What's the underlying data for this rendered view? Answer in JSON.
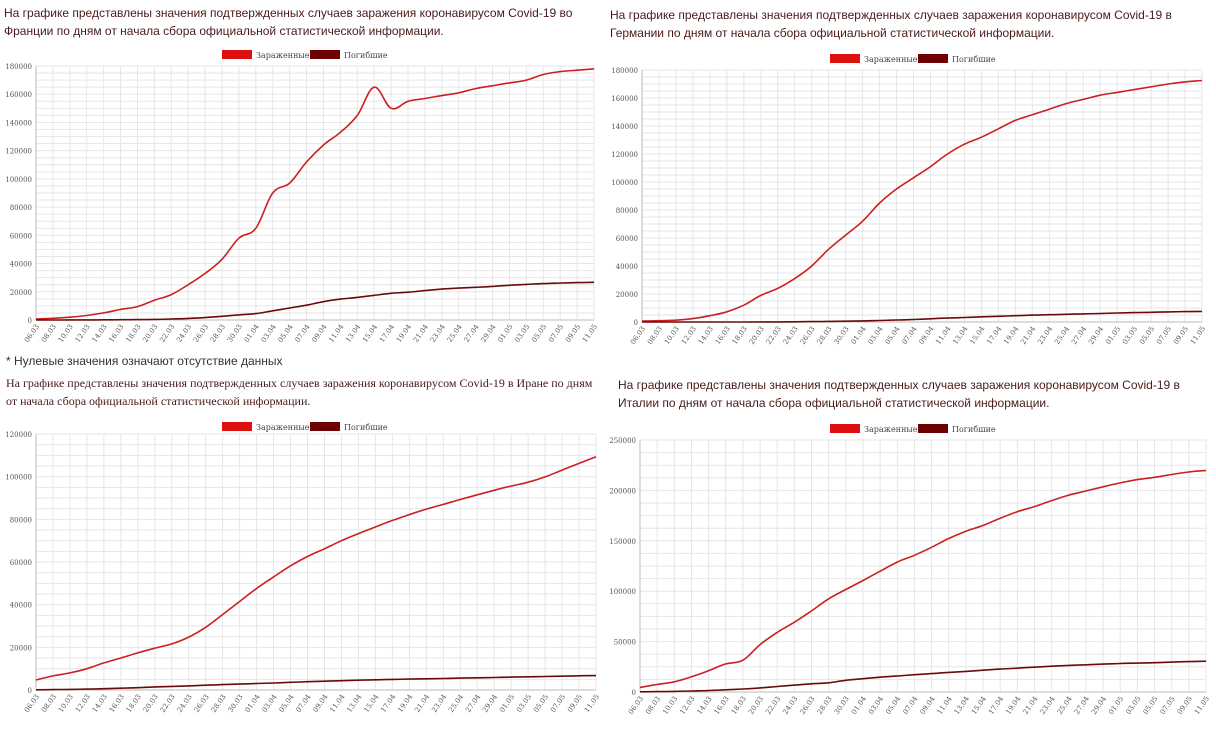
{
  "legend": {
    "infected": "Зараженные",
    "deaths": "Погибшие"
  },
  "colors": {
    "infected": "#cc1f1f",
    "deaths": "#6b0a0a",
    "legend_infected": "#dd0f0f",
    "legend_deaths": "#6d0000",
    "grid": "#e6e6e6",
    "axis_text": "#555555",
    "desc_text": "#4a1a1a"
  },
  "note": "* Нулевые значения означают отсутствие данных",
  "panels": [
    {
      "description": "На графике представлены значения подтвержденных случаев заражения коронавирусом Covid-19 во Франции по дням от начала сбора официальной статистической информации.",
      "chart_data": {
        "type": "line",
        "categories": [
          "06.03",
          "08.03",
          "10.03",
          "12.03",
          "14.03",
          "16.03",
          "18.03",
          "20.03",
          "22.03",
          "24.03",
          "26.03",
          "28.03",
          "30.03",
          "01.04",
          "03.04",
          "05.04",
          "07.04",
          "09.04",
          "11.04",
          "13.04",
          "15.04",
          "17.04",
          "19.04",
          "21.04",
          "23.04",
          "25.04",
          "27.04",
          "29.04",
          "01.05",
          "03.05",
          "05.05",
          "07.05",
          "09.05",
          "11.05"
        ],
        "yticks": [
          0,
          20000,
          40000,
          60000,
          80000,
          100000,
          120000,
          140000,
          160000,
          180000
        ],
        "ylim": [
          0,
          180000
        ],
        "series": [
          {
            "name": "Зараженные",
            "values": [
              700,
              1200,
              2000,
              3200,
              5000,
              7500,
              9500,
              14000,
              18000,
              25000,
              33000,
              43000,
              58000,
              65000,
              90000,
              97000,
              112000,
              124000,
              133000,
              145000,
              165000,
              150000,
              155000,
              157000,
              159000,
              161000,
              164000,
              166000,
              168000,
              170000,
              174000,
              176000,
              177000,
              178000
            ]
          },
          {
            "name": "Погибшие",
            "values": [
              10,
              20,
              40,
              80,
              120,
              180,
              250,
              450,
              700,
              1100,
              1700,
              2600,
              3600,
              4500,
              6500,
              8500,
              10500,
              13000,
              14800,
              16000,
              17500,
              18900,
              19700,
              20800,
              21900,
              22600,
              23200,
              23800,
              24600,
              25200,
              25800,
              26200,
              26500,
              26700
            ]
          }
        ]
      }
    },
    {
      "description": "На графике представлены значения подтвержденных случаев заражения коронавирусом Covid-19 в Германии по дням от начала сбора официальной статистической информации.",
      "chart_data": {
        "type": "line",
        "categories": [
          "06.03",
          "08.03",
          "10.03",
          "12.03",
          "14.03",
          "16.03",
          "18.03",
          "20.03",
          "22.03",
          "24.03",
          "26.03",
          "28.03",
          "30.03",
          "01.04",
          "03.04",
          "05.04",
          "07.04",
          "09.04",
          "11.04",
          "13.04",
          "15.04",
          "17.04",
          "19.04",
          "21.04",
          "23.04",
          "25.04",
          "27.04",
          "29.04",
          "01.05",
          "03.05",
          "05.05",
          "07.05",
          "09.05",
          "11.05"
        ],
        "yticks": [
          0,
          20000,
          40000,
          60000,
          80000,
          100000,
          120000,
          140000,
          160000,
          180000
        ],
        "ylim": [
          0,
          180000
        ],
        "series": [
          {
            "name": "Зараженные",
            "values": [
              700,
              900,
              1300,
              2400,
              4500,
              7300,
              12000,
              19000,
              24000,
              31000,
              40000,
              52000,
              62000,
              72000,
              85000,
              95000,
              103000,
              111000,
              120000,
              127000,
              132000,
              138000,
              144000,
              148000,
              152000,
              156000,
              159000,
              162000,
              164000,
              166000,
              168000,
              170000,
              171500,
              172500
            ]
          },
          {
            "name": "Погибшие",
            "values": [
              0,
              0,
              2,
              4,
              10,
              16,
              30,
              70,
              100,
              150,
              260,
              430,
              590,
              780,
              1100,
              1400,
              1800,
              2300,
              2800,
              3200,
              3700,
              4100,
              4500,
              4900,
              5200,
              5500,
              5800,
              6100,
              6400,
              6700,
              6900,
              7200,
              7400,
              7600
            ]
          }
        ]
      }
    },
    {
      "description": "На графике представлены значения подтвержденных случаев заражения коронавирусом Covid-19 в Иране по дням от начала сбора официальной статистической информации.",
      "chart_data": {
        "type": "line",
        "categories": [
          "06.03",
          "08.03",
          "10.03",
          "12.03",
          "14.03",
          "16.03",
          "18.03",
          "20.03",
          "22.03",
          "24.03",
          "26.03",
          "28.03",
          "30.03",
          "01.04",
          "03.04",
          "05.04",
          "07.04",
          "09.04",
          "11.04",
          "13.04",
          "15.04",
          "17.04",
          "19.04",
          "21.04",
          "23.04",
          "25.04",
          "27.04",
          "29.04",
          "01.05",
          "03.05",
          "05.05",
          "07.05",
          "09.05",
          "11.05"
        ],
        "yticks": [
          0,
          20000,
          40000,
          60000,
          80000,
          100000,
          120000
        ],
        "ytick_labels": [
          "0",
          "20000",
          "40000",
          "60000",
          "80000",
          "100000",
          "120000"
        ],
        "ylim": [
          0,
          120000
        ],
        "series": [
          {
            "name": "Зараженные",
            "values": [
              4700,
              6600,
              8000,
              10000,
              12700,
              15000,
              17400,
              19600,
              21600,
              24800,
              29400,
              35400,
              41500,
              47600,
              53000,
              58200,
              62600,
              66200,
              70000,
              73300,
              76400,
              79500,
              82200,
              84800,
              87000,
              89300,
              91500,
              93600,
              95600,
              97400,
              99900,
              103100,
              106200,
              109300
            ]
          },
          {
            "name": "Погибшие",
            "values": [
              100,
              190,
              290,
              430,
              610,
              850,
              1100,
              1430,
              1680,
              1930,
              2230,
              2520,
              2760,
              3040,
              3290,
              3600,
              3870,
              4110,
              4360,
              4590,
              4780,
              4960,
              5120,
              5270,
              5390,
              5560,
              5710,
              5870,
              6030,
              6200,
              6340,
              6490,
              6640,
              6750
            ]
          }
        ]
      }
    },
    {
      "description": "На графике представлены значения подтвержденных случаев заражения коронавирусом Covid-19 в Италии по дням от начала сбора официальной статистической информации.",
      "chart_data": {
        "type": "line",
        "categories": [
          "06.03",
          "08.03",
          "10.03",
          "12.03",
          "14.03",
          "16.03",
          "18.03",
          "20.03",
          "22.03",
          "24.03",
          "26.03",
          "28.03",
          "30.03",
          "01.04",
          "03.04",
          "05.04",
          "07.04",
          "09.04",
          "11.04",
          "13.04",
          "15.04",
          "17.04",
          "19.04",
          "21.04",
          "23.04",
          "25.04",
          "27.04",
          "29.04",
          "01.05",
          "03.05",
          "05.05",
          "07.05",
          "09.05",
          "11.05"
        ],
        "yticks": [
          0,
          50000,
          100000,
          150000,
          200000,
          250000
        ],
        "ylim": [
          0,
          250000
        ],
        "series": [
          {
            "name": "Зараженные",
            "values": [
              4600,
              7400,
              10100,
              15100,
              21100,
              27900,
              31500,
              47000,
              59100,
              69200,
              80500,
              92500,
              101700,
              110600,
              119800,
              128900,
              135600,
              143600,
              152300,
              159500,
              165200,
              172400,
              178900,
              183900,
              189900,
              195300,
              199400,
              203600,
              207400,
              210700,
              213000,
              215800,
              218300,
              219800
            ]
          },
          {
            "name": "Погибшие",
            "values": [
              200,
              360,
              630,
              1000,
              1440,
              2160,
              2980,
              4030,
              5480,
              6820,
              8160,
              9130,
              11590,
              13150,
              14680,
              15890,
              17130,
              18280,
              19470,
              20470,
              21650,
              22750,
              23660,
              24650,
              25550,
              26380,
              27000,
              27680,
              28240,
              28710,
              29080,
              29680,
              30200,
              30560
            ]
          }
        ]
      }
    }
  ]
}
